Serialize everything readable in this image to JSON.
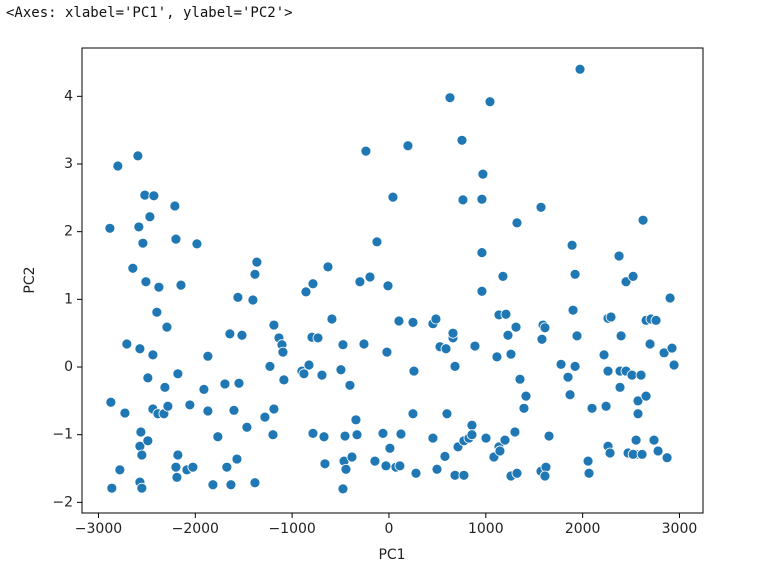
{
  "header": "<Axes: xlabel='PC1', ylabel='PC2'>",
  "chart_data": {
    "type": "scatter",
    "xlabel": "PC1",
    "ylabel": "PC2",
    "color": "#1f77b4",
    "xlim": [
      -3170,
      3243
    ],
    "ylim": [
      -2.157,
      4.714
    ],
    "xticks": [
      {
        "value": -3000,
        "label": "−3000"
      },
      {
        "value": -2000,
        "label": "−2000"
      },
      {
        "value": -1000,
        "label": "−1000"
      },
      0,
      1000,
      2000,
      3000
    ],
    "yticks": [
      {
        "value": -2,
        "label": "−2"
      },
      {
        "value": -1,
        "label": "−1"
      },
      0,
      1,
      2,
      3,
      4
    ],
    "x": [
      -2882,
      -2800,
      -2593,
      -2872,
      -2862,
      -2779,
      -2727,
      -2707,
      -2645,
      -2583,
      -2521,
      -2428,
      -2469,
      -2541,
      -2510,
      -2376,
      -2397,
      -2293,
      -2572,
      -2438,
      -2490,
      -2314,
      -2438,
      -2386,
      -2324,
      -2283,
      -2056,
      -2562,
      -2572,
      -2490,
      -2552,
      -2572,
      -2552,
      -2211,
      -2200,
      -2148,
      -2180,
      -2180,
      -2200,
      -2190,
      -2087,
      -2025,
      -1983,
      -1911,
      -1870,
      -1870,
      -1818,
      -1767,
      -1694,
      -1643,
      -1632,
      -1674,
      -1601,
      -1570,
      -1549,
      -1560,
      -1518,
      -1467,
      -1405,
      -1384,
      -1364,
      -1384,
      -1281,
      -1229,
      -1188,
      -1198,
      -1188,
      -1136,
      -1105,
      -1095,
      -1085,
      -899,
      -878,
      -857,
      -826,
      -795,
      -785,
      -785,
      -733,
      -692,
      -671,
      -661,
      -630,
      -589,
      -496,
      -475,
      -464,
      -454,
      -475,
      -444,
      -403,
      -382,
      -341,
      -330,
      -300,
      -258,
      -238,
      -196,
      -145,
      -124,
      -21,
      -62,
      -31,
      41,
      -10,
      10,
      72,
      103,
      124,
      113,
      196,
      248,
      248,
      258,
      279,
      454,
      485,
      454,
      496,
      527,
      589,
      578,
      599,
      630,
      661,
      661,
      682,
      682,
      713,
      754,
      764,
      774,
      774,
      826,
      857,
      857,
      888,
      970,
      960,
      960,
      960,
      1043,
      1002,
      1084,
      1115,
      1136,
      1136,
      1146,
      1177,
      1198,
      1208,
      1229,
      1260,
      1260,
      1301,
      1312,
      1322,
      1322,
      1353,
      1394,
      1415,
      1570,
      1570,
      1591,
      1580,
      1621,
      1611,
      1611,
      1653,
      1777,
      1849,
      1870,
      1891,
      1901,
      1922,
      1942,
      1922,
      1973,
      2056,
      2097,
      2066,
      2221,
      2242,
      2262,
      2262,
      2262,
      2283,
      2293,
      2386,
      2376,
      2397,
      2386,
      2448,
      2448,
      2469,
      2521,
      2510,
      2552,
      2552,
      2572,
      2521,
      2572,
      2603,
      2614,
      2624,
      2655,
      2655,
      2696,
      2706,
      2758,
      2737,
      2779,
      2841,
      2872,
      2903,
      2923,
      2944
    ],
    "y": [
      2.05,
      2.97,
      3.12,
      -0.52,
      -1.79,
      -1.52,
      -0.68,
      0.34,
      1.46,
      2.07,
      2.54,
      2.53,
      2.22,
      1.83,
      1.26,
      1.18,
      0.81,
      0.59,
      0.27,
      0.18,
      -0.16,
      -0.3,
      -0.62,
      -0.69,
      -0.69,
      -0.58,
      -0.56,
      -0.96,
      -1.17,
      -1.09,
      -1.3,
      -1.7,
      -1.79,
      2.38,
      1.89,
      1.21,
      -0.1,
      -1.3,
      -1.48,
      -1.63,
      -1.52,
      -1.48,
      1.82,
      -0.33,
      0.16,
      -0.65,
      -1.74,
      -1.03,
      -0.25,
      0.49,
      -1.74,
      -1.48,
      -0.64,
      -1.36,
      -0.24,
      1.03,
      0.47,
      -0.89,
      0.99,
      1.37,
      1.55,
      -1.71,
      -0.74,
      0.01,
      -0.62,
      -1.0,
      0.62,
      0.43,
      0.33,
      0.22,
      -0.19,
      -0.06,
      -0.1,
      1.11,
      0.03,
      0.44,
      1.23,
      -0.98,
      0.43,
      -0.12,
      -1.03,
      -1.43,
      1.48,
      0.71,
      -0.04,
      0.33,
      -1.39,
      -1.02,
      -1.8,
      -1.51,
      -0.27,
      -1.33,
      -0.78,
      -1.0,
      1.26,
      0.34,
      3.19,
      1.33,
      -1.39,
      1.85,
      0.22,
      -0.98,
      -1.46,
      2.51,
      1.2,
      -1.2,
      -1.48,
      0.68,
      -0.99,
      -1.46,
      3.27,
      0.66,
      -0.69,
      -0.06,
      -1.57,
      0.64,
      0.71,
      -1.05,
      -1.51,
      0.3,
      0.27,
      -1.32,
      -0.69,
      3.98,
      0.43,
      0.5,
      0.01,
      -1.6,
      -1.18,
      3.35,
      2.47,
      -1.6,
      -1.09,
      -1.05,
      -0.86,
      -1.0,
      0.31,
      2.85,
      2.48,
      1.69,
      1.12,
      3.92,
      -1.05,
      -1.33,
      0.15,
      -1.18,
      0.77,
      -1.24,
      1.34,
      -1.08,
      0.78,
      0.47,
      0.19,
      -1.61,
      -0.96,
      0.59,
      2.13,
      -1.57,
      -0.18,
      -0.61,
      -0.43,
      2.36,
      -1.54,
      0.62,
      0.41,
      -1.48,
      -1.61,
      0.58,
      -1.02,
      0.04,
      -0.15,
      -0.41,
      1.8,
      0.84,
      1.37,
      0.46,
      0.01,
      4.4,
      -1.39,
      -0.61,
      -1.57,
      0.18,
      -0.58,
      -1.17,
      0.72,
      -0.06,
      -1.27,
      0.74,
      -0.06,
      1.64,
      0.46,
      -0.3,
      1.26,
      -0.06,
      -1.27,
      1.34,
      -0.12,
      -1.08,
      -1.29,
      -0.5,
      -1.29,
      -0.69,
      -0.12,
      -1.29,
      2.17,
      0.69,
      -0.43,
      0.34,
      0.71,
      0.69,
      -1.08,
      -1.24,
      0.21,
      -1.34,
      1.02,
      0.28,
      0.03
    ]
  }
}
